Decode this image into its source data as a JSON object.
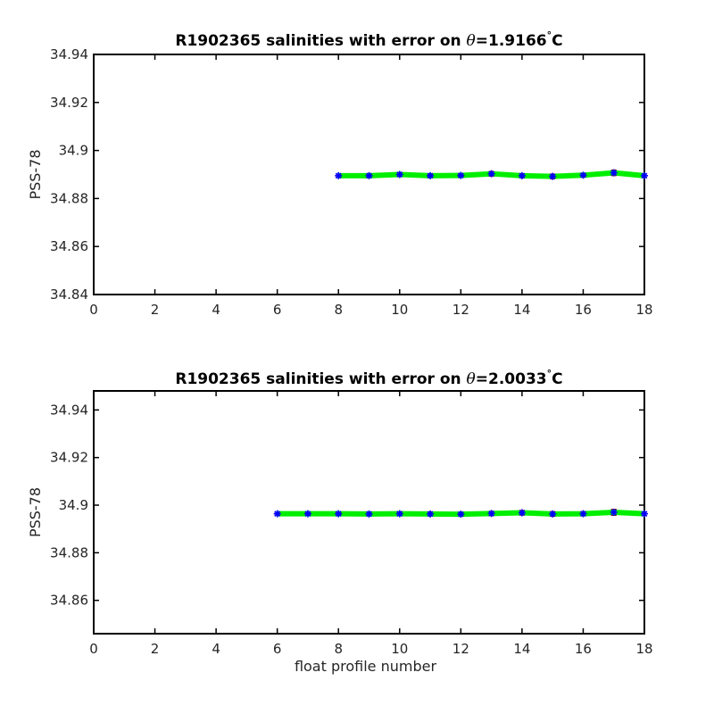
{
  "figure": {
    "xlabel": "float profile number"
  },
  "colors": {
    "line": "#00ee00",
    "marker": "#0000ff",
    "errorbar": "#8b0000",
    "axis": "#000000"
  },
  "chart_data": [
    {
      "type": "line",
      "title_prefix": "R1902365 salinities with error on ",
      "title_symbol": "θ",
      "title_value": "=1.9166",
      "title_degree": "°",
      "title_unit": "C",
      "xlabel": "",
      "ylabel": "PSS-78",
      "xlim": [
        0,
        18
      ],
      "ylim": [
        34.84,
        34.94
      ],
      "xticks": [
        0,
        2,
        4,
        6,
        8,
        10,
        12,
        14,
        16,
        18
      ],
      "yticks": [
        34.84,
        34.86,
        34.88,
        34.9,
        34.92,
        34.94
      ],
      "ytick_labels": [
        "34.84",
        "34.86",
        "34.88",
        "34.9",
        "34.92",
        "34.94"
      ],
      "x": [
        8,
        9,
        10,
        11,
        12,
        13,
        14,
        15,
        16,
        17,
        18
      ],
      "y": [
        34.8895,
        34.8895,
        34.89,
        34.8895,
        34.8896,
        34.8903,
        34.8895,
        34.8892,
        34.8897,
        34.8907,
        34.8895
      ],
      "error": [
        0.0006,
        0.0006,
        0.0008,
        0.0006,
        0.0006,
        0.001,
        0.0008,
        0.001,
        0.0007,
        0.0012,
        0.0007
      ],
      "grid": false
    },
    {
      "type": "line",
      "title_prefix": "R1902365 salinities with error on ",
      "title_symbol": "θ",
      "title_value": "=2.0033",
      "title_degree": "°",
      "title_unit": "C",
      "xlabel": "float profile number",
      "ylabel": "PSS-78",
      "xlim": [
        0,
        18
      ],
      "ylim": [
        34.846,
        34.948
      ],
      "xticks": [
        0,
        2,
        4,
        6,
        8,
        10,
        12,
        14,
        16,
        18
      ],
      "yticks": [
        34.86,
        34.88,
        34.9,
        34.92,
        34.94
      ],
      "ytick_labels": [
        "34.86",
        "34.88",
        "34.9",
        "34.92",
        "34.94"
      ],
      "x": [
        6,
        7,
        8,
        9,
        10,
        11,
        12,
        13,
        14,
        15,
        16,
        17,
        18
      ],
      "y": [
        34.8964,
        34.8964,
        34.8964,
        34.8963,
        34.8964,
        34.8963,
        34.8962,
        34.8965,
        34.8968,
        34.8963,
        34.8964,
        34.897,
        34.8964
      ],
      "error": [
        0.0006,
        0.0006,
        0.0006,
        0.0007,
        0.0007,
        0.0008,
        0.0007,
        0.0009,
        0.001,
        0.001,
        0.0008,
        0.0013,
        0.0007
      ],
      "grid": false
    }
  ]
}
